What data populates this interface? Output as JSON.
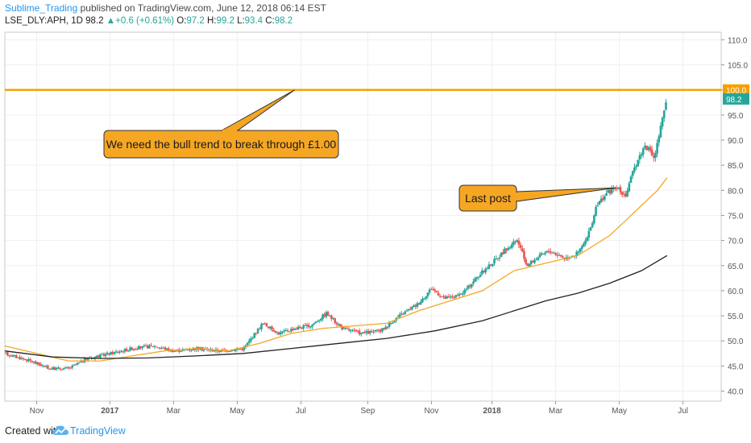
{
  "header": {
    "author": "Sublime_Trading",
    "published": "published on TradingView.com, June 12, 2018 06:14 EST",
    "symbol": "LSE_DLY:APH, 1D",
    "last": "98.2",
    "arrow": "▲",
    "change": "+0.6 (+0.61%)",
    "o_label": "O:",
    "o_val": "97.2",
    "h_label": "H:",
    "h_val": "99.2",
    "l_label": "L:",
    "l_val": "93.4",
    "c_label": "C:",
    "c_val": "98.2"
  },
  "footer": {
    "created": "Created with",
    "brand": "TradingView"
  },
  "colors": {
    "up": "#26a69a",
    "down": "#ef5350",
    "ma_fast": "#f5a623",
    "ma_slow": "#222222",
    "resistance": "#f5a000",
    "callout_fill": "#f5a623"
  },
  "chart_data": {
    "type": "candlestick",
    "ylim": [
      38,
      111.5
    ],
    "y_ticks": [
      "40.0",
      "45.0",
      "50.0",
      "55.0",
      "60.0",
      "65.0",
      "70.0",
      "75.0",
      "80.0",
      "85.0",
      "90.0",
      "95.0",
      "100.0",
      "105.0",
      "110.0"
    ],
    "x_ticks": [
      "Nov",
      "2017",
      "Mar",
      "May",
      "Jul",
      "Sep",
      "Nov",
      "2018",
      "Mar",
      "May",
      "Jul"
    ],
    "x_tick_positions": [
      0.5,
      2.8,
      4.8,
      6.8,
      8.8,
      10.9,
      12.9,
      14.8,
      16.8,
      18.8,
      20.8
    ],
    "x_range": [
      -0.5,
      22
    ],
    "price_path": [
      [
        -0.5,
        47.5
      ],
      [
        0.3,
        46.0
      ],
      [
        0.9,
        44.5
      ],
      [
        1.5,
        44.5
      ],
      [
        2.1,
        46.5
      ],
      [
        2.8,
        47.5
      ],
      [
        3.5,
        48.5
      ],
      [
        4.2,
        49.0
      ],
      [
        4.8,
        48.0
      ],
      [
        5.5,
        48.5
      ],
      [
        6.3,
        48.0
      ],
      [
        7.0,
        48.5
      ],
      [
        7.6,
        53.5
      ],
      [
        8.1,
        51.5
      ],
      [
        8.6,
        52.5
      ],
      [
        9.1,
        53.0
      ],
      [
        9.6,
        55.5
      ],
      [
        10.1,
        52.5
      ],
      [
        10.7,
        51.5
      ],
      [
        11.3,
        52.0
      ],
      [
        11.9,
        55.0
      ],
      [
        12.5,
        57.5
      ],
      [
        12.9,
        60.5
      ],
      [
        13.3,
        58.5
      ],
      [
        13.8,
        59.0
      ],
      [
        14.3,
        62.5
      ],
      [
        14.8,
        65.5
      ],
      [
        15.2,
        68.0
      ],
      [
        15.6,
        70.0
      ],
      [
        15.9,
        65.0
      ],
      [
        16.2,
        66.5
      ],
      [
        16.6,
        68.0
      ],
      [
        17.1,
        66.5
      ],
      [
        17.5,
        67.5
      ],
      [
        17.8,
        70.5
      ],
      [
        18.1,
        77.0
      ],
      [
        18.4,
        79.5
      ],
      [
        18.7,
        80.5
      ],
      [
        19.0,
        79.0
      ],
      [
        19.3,
        85.0
      ],
      [
        19.6,
        89.0
      ],
      [
        19.9,
        86.5
      ],
      [
        20.1,
        92.5
      ],
      [
        20.3,
        98.2
      ]
    ],
    "ma_fast": [
      [
        -0.5,
        49.0
      ],
      [
        0.5,
        47.5
      ],
      [
        1.5,
        46.0
      ],
      [
        2.5,
        46.0
      ],
      [
        3.5,
        47.0
      ],
      [
        4.5,
        48.0
      ],
      [
        5.5,
        48.5
      ],
      [
        6.5,
        48.0
      ],
      [
        7.5,
        49.5
      ],
      [
        8.5,
        51.5
      ],
      [
        9.5,
        52.5
      ],
      [
        10.5,
        53.0
      ],
      [
        11.5,
        53.5
      ],
      [
        12.5,
        56.0
      ],
      [
        13.5,
        58.0
      ],
      [
        14.5,
        60.0
      ],
      [
        15.5,
        64.0
      ],
      [
        16.5,
        65.5
      ],
      [
        17.5,
        67.0
      ],
      [
        18.5,
        71.0
      ],
      [
        19.0,
        74.0
      ],
      [
        19.5,
        77.0
      ],
      [
        20.0,
        80.0
      ],
      [
        20.3,
        82.5
      ]
    ],
    "ma_slow": [
      [
        -0.5,
        48.0
      ],
      [
        1.0,
        46.8
      ],
      [
        2.5,
        46.5
      ],
      [
        4.0,
        46.6
      ],
      [
        5.5,
        47.0
      ],
      [
        7.0,
        47.5
      ],
      [
        8.5,
        48.5
      ],
      [
        10.0,
        49.5
      ],
      [
        11.5,
        50.5
      ],
      [
        13.0,
        52.0
      ],
      [
        14.5,
        54.0
      ],
      [
        15.5,
        56.0
      ],
      [
        16.5,
        58.0
      ],
      [
        17.5,
        59.5
      ],
      [
        18.5,
        61.5
      ],
      [
        19.5,
        64.0
      ],
      [
        20.3,
        67.0
      ]
    ],
    "resistance": {
      "value": 100.0,
      "label": "100.0"
    },
    "last_price": {
      "value": 98.2,
      "label": "98.2"
    },
    "annotations": [
      {
        "text": "We need the bull trend to break through £1.00",
        "tip": [
          8.6,
          100.0
        ]
      },
      {
        "text": "Last post",
        "tip": [
          18.7,
          80.5
        ]
      }
    ]
  }
}
